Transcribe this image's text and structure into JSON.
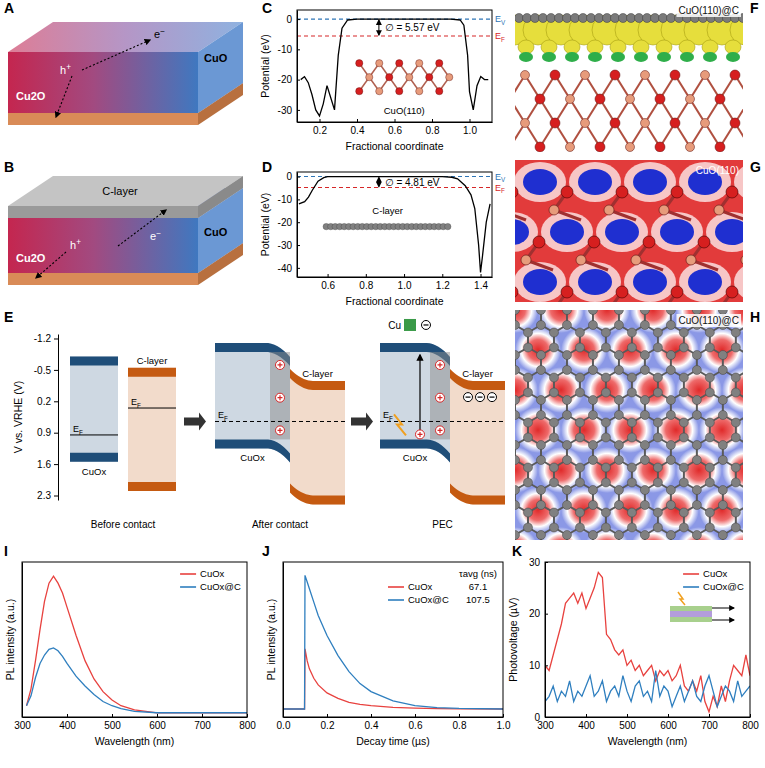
{
  "chart_data": [
    {
      "panel_label": "C",
      "type": "line",
      "x_label": "Fractional coordinate",
      "y_label": "Potential (eV)",
      "xlim": [
        0.08,
        1.12
      ],
      "ylim": [
        -34,
        3
      ],
      "xticks": [
        0.2,
        0.4,
        0.6,
        0.8,
        {
          "value": 1,
          "label": "1.0"
        }
      ],
      "yticks": [
        -30,
        -20,
        -10,
        0
      ],
      "grid": false,
      "x": [
        0.1,
        0.12,
        0.14,
        0.16,
        0.18,
        0.2,
        0.22,
        0.24,
        0.26,
        0.28,
        0.3,
        0.32,
        0.35,
        0.4,
        0.6,
        0.8,
        0.9,
        0.95,
        0.97,
        0.99,
        1.0,
        1.02,
        1.04,
        1.06,
        1.08,
        1.1
      ],
      "series": [
        {
          "color": "#000000",
          "values": [
            -20,
            -19,
            -21,
            -25,
            -30,
            -32,
            -28,
            -22,
            -26,
            -30,
            -12,
            -3,
            -0.3,
            0,
            0,
            0,
            0,
            -0.3,
            -2,
            -12,
            -24,
            -30,
            -22,
            -19,
            -20,
            -20
          ]
        }
      ],
      "reference_lines": [
        {
          "label": {
            "main": "E",
            "sub": "V"
          },
          "value": 0,
          "color": "#2e75b6",
          "line_style": "dashed"
        },
        {
          "label": {
            "main": "E",
            "sub": "F"
          },
          "value": -5.57,
          "color": "#d62728",
          "line_style": "dashed"
        }
      ],
      "annotation": "∅ = 5.57 eV",
      "inset_label": "CuO(110)"
    },
    {
      "panel_label": "D",
      "type": "line",
      "x_label": "Fractional coordinate",
      "y_label": "Potential (eV)",
      "xlim": [
        0.44,
        1.46
      ],
      "ylim": [
        -44,
        2
      ],
      "xticks": [
        0.6,
        0.8,
        {
          "value": 1,
          "label": "1.0"
        },
        1.2,
        1.4
      ],
      "yticks": [
        -40,
        -30,
        -20,
        -10,
        0
      ],
      "grid": false,
      "x": [
        0.45,
        0.48,
        0.5,
        0.52,
        0.55,
        0.58,
        0.6,
        0.8,
        1.0,
        1.2,
        1.25,
        1.28,
        1.3,
        1.32,
        1.35,
        1.37,
        1.39,
        1.4,
        1.41,
        1.43,
        1.45
      ],
      "series": [
        {
          "color": "#000000",
          "values": [
            -12,
            -11,
            -9,
            -6,
            -2,
            -0.5,
            0,
            0,
            0,
            0,
            -0.3,
            -1,
            -2.5,
            -4,
            -8,
            -14,
            -30,
            -42,
            -35,
            -20,
            -12
          ]
        }
      ],
      "reference_lines": [
        {
          "label": {
            "main": "E",
            "sub": "V"
          },
          "value": 0,
          "color": "#2e75b6",
          "line_style": "dashed"
        },
        {
          "label": {
            "main": "E",
            "sub": "F"
          },
          "value": -4.81,
          "color": "#d62728",
          "line_style": "dashed"
        }
      ],
      "annotation": "∅ = 4.81 eV",
      "inset_label": "C-layer"
    },
    {
      "panel_label": "I",
      "type": "line",
      "x_label": "Wavelength (nm)",
      "y_label": "PL intensity (a.u.)",
      "xlim": [
        300,
        800
      ],
      "ylim": [
        0,
        1.1
      ],
      "xticks": [
        300,
        400,
        500,
        600,
        700,
        800
      ],
      "tick_labels": "x",
      "legend": "upper right",
      "grid": false,
      "x": [
        310,
        320,
        330,
        340,
        350,
        360,
        370,
        380,
        390,
        400,
        420,
        440,
        460,
        480,
        500,
        520,
        550,
        600,
        650,
        700,
        750,
        800
      ],
      "series": [
        {
          "name": "CuOx",
          "color": "#e8423f",
          "values": [
            0.08,
            0.2,
            0.4,
            0.62,
            0.82,
            0.95,
            1.0,
            0.95,
            0.88,
            0.78,
            0.58,
            0.4,
            0.27,
            0.18,
            0.12,
            0.08,
            0.05,
            0.03,
            0.03,
            0.03,
            0.03,
            0.03
          ]
        },
        {
          "name": "CuOx@C",
          "color": "#2f7fbf",
          "values": [
            0.08,
            0.15,
            0.28,
            0.38,
            0.44,
            0.48,
            0.49,
            0.47,
            0.43,
            0.38,
            0.29,
            0.22,
            0.16,
            0.11,
            0.08,
            0.06,
            0.04,
            0.03,
            0.03,
            0.03,
            0.03,
            0.03
          ]
        }
      ]
    },
    {
      "panel_label": "J",
      "type": "line",
      "x_label": "Decay time (µs)",
      "y_label": "PL intensity (a.u.)",
      "xlim": [
        0,
        1
      ],
      "ylim": [
        -0.06,
        1.1
      ],
      "xticks": [
        {
          "value": 0,
          "label": "0.0"
        },
        0.2,
        0.4,
        0.6,
        0.8,
        {
          "value": 1,
          "label": "1.0"
        }
      ],
      "tick_labels": "x",
      "legend": "upper right",
      "legend_title": "τavg (ns)",
      "grid": false,
      "x": [
        0,
        0.098,
        0.1,
        0.11,
        0.12,
        0.14,
        0.16,
        0.2,
        0.25,
        0.3,
        0.35,
        0.4,
        0.5,
        0.6,
        0.7,
        0.8,
        1.0
      ],
      "series": [
        {
          "name": "CuOx",
          "color": "#e8423f",
          "tau_avg": 67.1,
          "values": [
            0,
            0,
            0.45,
            0.36,
            0.3,
            0.23,
            0.18,
            0.12,
            0.08,
            0.05,
            0.035,
            0.025,
            0.012,
            0.006,
            0.003,
            0.001,
            0
          ]
        },
        {
          "name": "CuOx@C",
          "color": "#2f7fbf",
          "tau_avg": 107.5,
          "values": [
            0,
            0,
            1.0,
            0.95,
            0.9,
            0.8,
            0.7,
            0.55,
            0.4,
            0.28,
            0.19,
            0.13,
            0.06,
            0.025,
            0.01,
            0.004,
            0
          ]
        }
      ]
    },
    {
      "panel_label": "K",
      "type": "line",
      "x_label": "Wavelength (nm)",
      "y_label": "Photovoltage (µV)",
      "xlim": [
        300,
        800
      ],
      "ylim": [
        0,
        30
      ],
      "xticks": [
        300,
        400,
        500,
        600,
        700,
        800
      ],
      "yticks": [
        0,
        10,
        20,
        30
      ],
      "legend": "upper right",
      "grid": false,
      "x": [
        300,
        310,
        320,
        330,
        340,
        350,
        360,
        370,
        380,
        390,
        400,
        410,
        420,
        430,
        440,
        450,
        460,
        470,
        480,
        490,
        500,
        510,
        520,
        530,
        540,
        550,
        560,
        570,
        580,
        590,
        600,
        610,
        620,
        630,
        640,
        650,
        660,
        670,
        680,
        690,
        700,
        710,
        720,
        730,
        740,
        750,
        760,
        770,
        780,
        790,
        800
      ],
      "series": [
        {
          "name": "CuOx",
          "color": "#e8423f",
          "values": [
            10,
            9,
            12,
            15,
            18,
            22,
            23,
            24,
            22,
            24,
            21,
            23,
            25,
            28,
            27,
            16,
            15,
            13,
            12,
            13,
            10,
            11,
            9,
            10,
            8,
            9,
            10,
            7,
            9,
            8,
            9,
            7,
            8,
            10,
            6,
            5,
            7,
            5,
            8,
            3,
            1,
            4,
            2,
            6,
            3,
            7,
            10,
            9,
            8,
            12,
            8
          ]
        },
        {
          "name": "CuOx@C",
          "color": "#2f7fbf",
          "values": [
            3,
            4,
            6,
            3,
            5,
            4,
            7,
            3,
            5,
            4,
            6,
            8,
            4,
            5,
            7,
            3,
            5,
            6,
            4,
            8,
            5,
            3,
            6,
            7,
            4,
            5,
            3,
            9,
            4,
            6,
            5,
            2,
            4,
            6,
            3,
            5,
            7,
            4,
            3,
            6,
            8,
            5,
            2,
            4,
            6,
            5,
            3,
            7,
            4,
            5,
            6
          ]
        }
      ]
    }
  ],
  "diagrams": {
    "A": {
      "panel_label": "A",
      "labels": {
        "bottom_layer": "Cu2O",
        "top_layer": "CuO",
        "hole": {
          "main": "h",
          "sup": "+"
        },
        "electron": {
          "main": "e",
          "sup": "−"
        }
      }
    },
    "B": {
      "panel_label": "B",
      "labels": {
        "bottom_layer": "Cu2O",
        "top_layer": "CuO",
        "coating": "C-layer",
        "hole": {
          "main": "h",
          "sup": "+"
        },
        "electron": {
          "main": "e",
          "sup": "−"
        }
      }
    },
    "E": {
      "panel_label": "E",
      "y_label": "V vs. VRHE (V)",
      "ylim": [
        -1.3,
        2.4
      ],
      "yticks": [
        -1.2,
        -0.5,
        0.2,
        0.9,
        1.6,
        2.3
      ],
      "materials": [
        {
          "label": "CuOx",
          "cb": -0.8,
          "vb": 1.55,
          "ef": 0.95,
          "color": "#1f4e79"
        },
        {
          "label": "C-layer",
          "cb": -0.55,
          "vb": 2.2,
          "ef": 0.35,
          "color": "#c55a11"
        }
      ],
      "ef_label": {
        "main": "E",
        "sub": "F"
      },
      "metal_label": "Cu",
      "stages": [
        "Before contact",
        "After contact",
        "PEC"
      ]
    },
    "F": {
      "panel_label": "F",
      "label": "CuO(110)@C"
    },
    "G": {
      "panel_label": "G",
      "label": "CuO(110)"
    },
    "H": {
      "panel_label": "H",
      "label": "CuO(110)@C"
    }
  }
}
